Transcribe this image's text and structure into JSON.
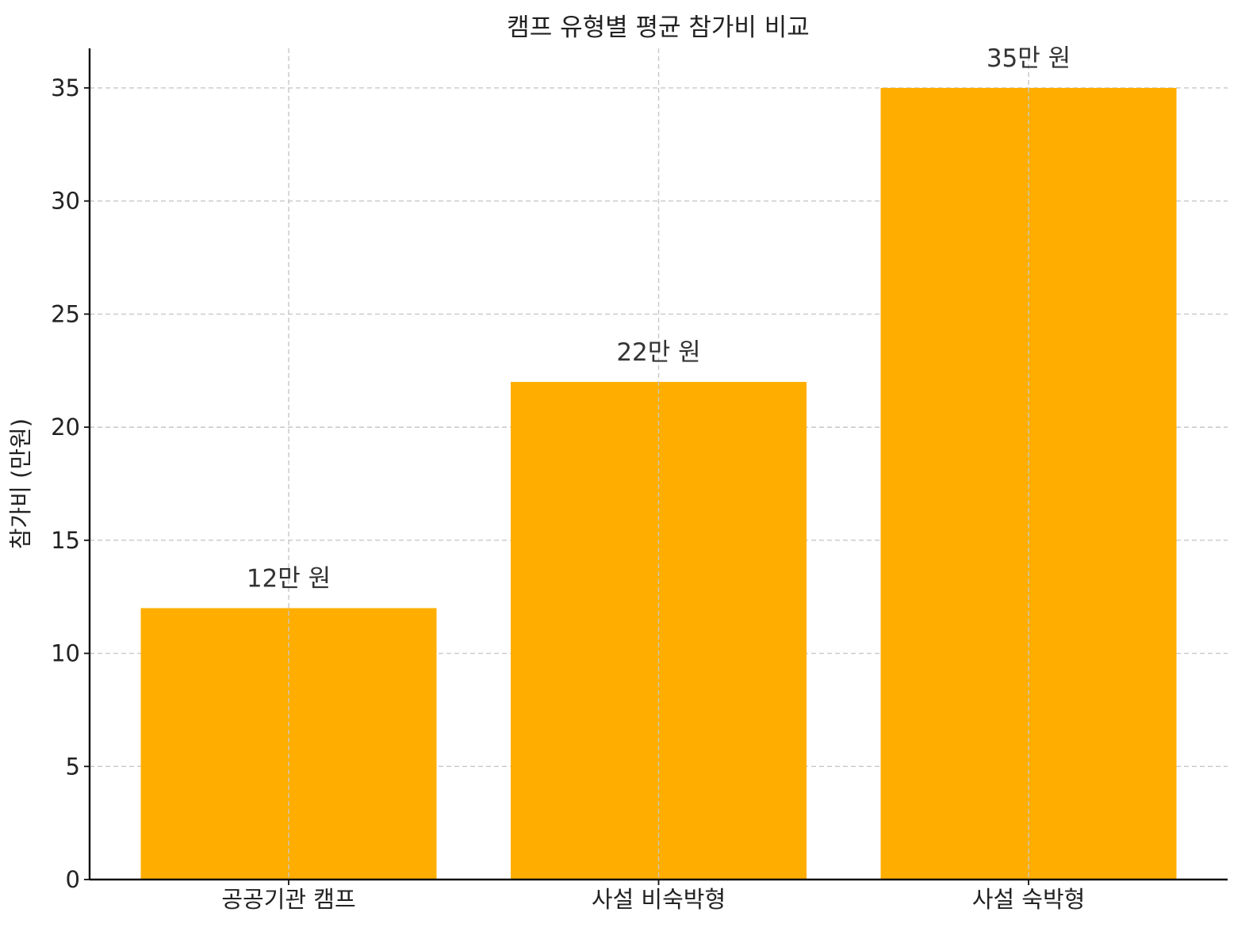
{
  "chart_data": {
    "type": "bar",
    "title": "캠프 유형별 평균 참가비 비교",
    "xlabel": "",
    "ylabel": "참가비 (만원)",
    "categories": [
      "공공기관 캠프",
      "사설 비숙박형",
      "사설 숙박형"
    ],
    "values": [
      12,
      22,
      35
    ],
    "data_labels": [
      "12만 원",
      "22만 원",
      "35만 원"
    ],
    "ylim": [
      0,
      36.75
    ],
    "yticks": [
      0,
      5,
      10,
      15,
      20,
      25,
      30,
      35
    ],
    "ytick_labels": [
      "0",
      "5",
      "10",
      "15",
      "20",
      "25",
      "30",
      "35"
    ],
    "bar_color": "#FFAE00",
    "grid": true,
    "legend": "none"
  }
}
